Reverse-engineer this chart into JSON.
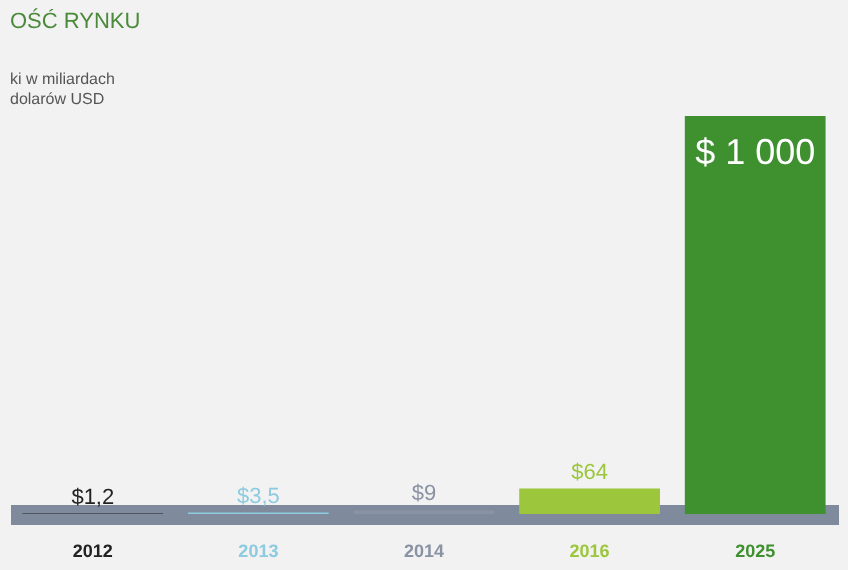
{
  "chart_data": {
    "type": "bar",
    "title": "OŚĆ RYNKU",
    "subtitle": "ki w miliardach\ndolarów USD",
    "categories": [
      "2012",
      "2013",
      "2014",
      "2016",
      "2025"
    ],
    "values": [
      1.2,
      3.5,
      9,
      64,
      1000
    ],
    "colors": [
      "#222222",
      "#8ccbe0",
      "#8a93a3",
      "#9cc63c",
      "#3f9130"
    ],
    "tick_labels": "x",
    "value_labels": [
      "$1,2",
      "$3,5",
      "$9",
      "$64",
      "$ 1 000"
    ]
  }
}
